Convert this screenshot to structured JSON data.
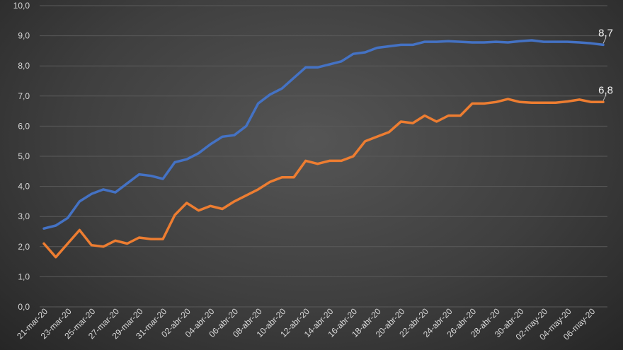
{
  "chart_data": {
    "type": "line",
    "ylim": [
      0,
      10
    ],
    "y_ticks": [
      "0,0",
      "1,0",
      "2,0",
      "3,0",
      "4,0",
      "5,0",
      "6,0",
      "7,0",
      "8,0",
      "9,0",
      "10,0"
    ],
    "grid": true,
    "x": [
      "21-mar-20",
      "22-mar-20",
      "23-mar-20",
      "24-mar-20",
      "25-mar-20",
      "26-mar-20",
      "27-mar-20",
      "28-mar-20",
      "29-mar-20",
      "30-mar-20",
      "31-mar-20",
      "01-abr-20",
      "02-abr-20",
      "03-abr-20",
      "04-abr-20",
      "05-abr-20",
      "06-abr-20",
      "07-abr-20",
      "08-abr-20",
      "09-abr-20",
      "10-abr-20",
      "11-abr-20",
      "12-abr-20",
      "13-abr-20",
      "14-abr-20",
      "15-abr-20",
      "16-abr-20",
      "17-abr-20",
      "18-abr-20",
      "19-abr-20",
      "20-abr-20",
      "21-abr-20",
      "22-abr-20",
      "23-abr-20",
      "24-abr-20",
      "25-abr-20",
      "26-abr-20",
      "27-abr-20",
      "28-abr-20",
      "29-abr-20",
      "30-abr-20",
      "01-may-20",
      "02-may-20",
      "03-may-20",
      "04-may-20",
      "05-may-20",
      "06-may-20",
      "07-may-20"
    ],
    "x_tick_labels": [
      "21-mar-20",
      "23-mar-20",
      "25-mar-20",
      "27-mar-20",
      "29-mar-20",
      "31-mar-20",
      "02-abr-20",
      "04-abr-20",
      "06-abr-20",
      "08-abr-20",
      "10-abr-20",
      "12-abr-20",
      "14-abr-20",
      "16-abr-20",
      "18-abr-20",
      "20-abr-20",
      "22-abr-20",
      "24-abr-20",
      "26-abr-20",
      "28-abr-20",
      "30-abr-20",
      "02-may-20",
      "04-may-20",
      "06-may-20"
    ],
    "series": [
      {
        "color": "#4472c4",
        "end_label": "8,7",
        "values": [
          2.6,
          2.7,
          2.95,
          3.5,
          3.75,
          3.9,
          3.8,
          4.1,
          4.4,
          4.35,
          4.25,
          4.8,
          4.9,
          5.1,
          5.4,
          5.65,
          5.7,
          6.0,
          6.75,
          7.05,
          7.25,
          7.6,
          7.95,
          7.95,
          8.05,
          8.15,
          8.4,
          8.45,
          8.6,
          8.65,
          8.7,
          8.7,
          8.8,
          8.8,
          8.82,
          8.8,
          8.78,
          8.78,
          8.8,
          8.78,
          8.82,
          8.85,
          8.8,
          8.8,
          8.8,
          8.78,
          8.75,
          8.7
        ]
      },
      {
        "color": "#ed7d31",
        "end_label": "6,8",
        "values": [
          2.1,
          1.65,
          2.1,
          2.55,
          2.05,
          2.0,
          2.2,
          2.1,
          2.3,
          2.25,
          2.25,
          3.05,
          3.45,
          3.2,
          3.35,
          3.25,
          3.5,
          3.7,
          3.9,
          4.15,
          4.3,
          4.3,
          4.85,
          4.75,
          4.85,
          4.85,
          5.0,
          5.5,
          5.65,
          5.8,
          6.15,
          6.1,
          6.35,
          6.15,
          6.35,
          6.35,
          6.75,
          6.75,
          6.8,
          6.9,
          6.8,
          6.78,
          6.78,
          6.78,
          6.82,
          6.88,
          6.8,
          6.8
        ]
      }
    ]
  }
}
